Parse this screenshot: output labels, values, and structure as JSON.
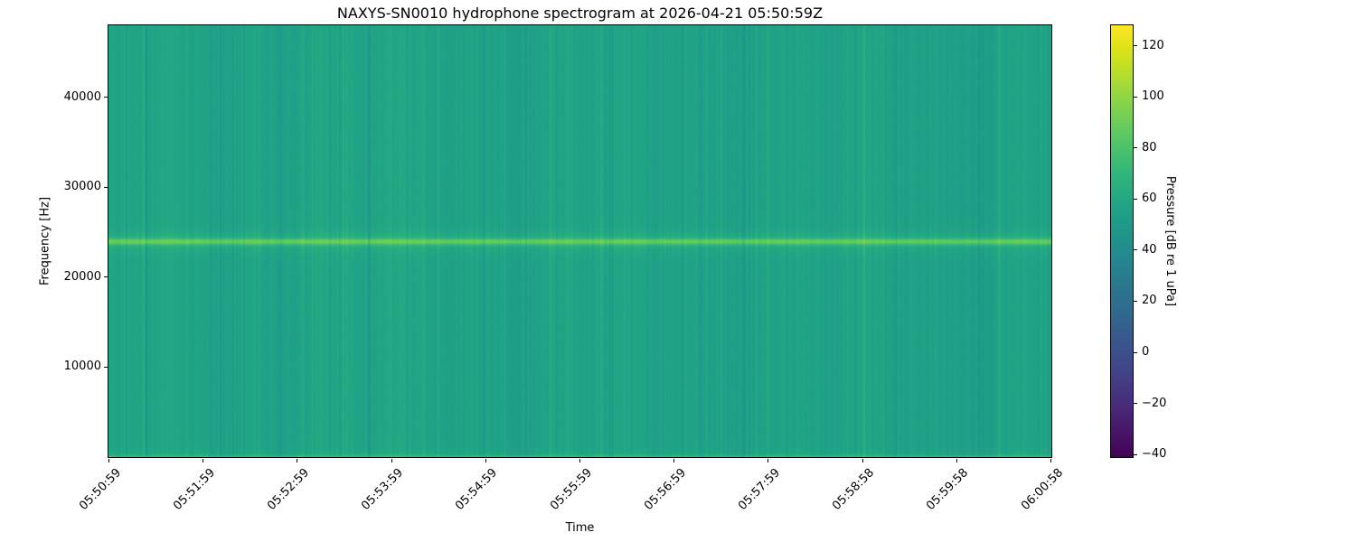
{
  "figure": {
    "title": "NAXYS-SN0010 hydrophone spectrogram at 2026-04-21 05:50:59Z",
    "background_color": "#ffffff"
  },
  "axes": {
    "xlabel": "Time",
    "ylabel": "Frequency [Hz]",
    "x_tick_labels": [
      "05:50:59",
      "05:51:59",
      "05:52:59",
      "05:53:59",
      "05:54:59",
      "05:55:59",
      "05:56:59",
      "05:57:59",
      "05:58:58",
      "05:59:58",
      "06:00:58"
    ],
    "y_tick_labels": [
      "10000",
      "20000",
      "30000",
      "40000"
    ],
    "y_tick_values": [
      10000,
      20000,
      30000,
      40000
    ],
    "y_range_hz": [
      0,
      48000
    ]
  },
  "colorbar": {
    "label": "Pressure [dB re 1 uPa]",
    "tick_labels": [
      "120",
      "100",
      "80",
      "60",
      "40",
      "20",
      "0",
      "−20",
      "−40"
    ],
    "tick_values": [
      120,
      100,
      80,
      60,
      40,
      20,
      0,
      -20,
      -40
    ],
    "vmin": -41,
    "vmax": 128,
    "colormap": "viridis",
    "colormap_stops": [
      {
        "t": 0.0,
        "c": "#440154"
      },
      {
        "t": 0.05,
        "c": "#471365"
      },
      {
        "t": 0.1,
        "c": "#482475"
      },
      {
        "t": 0.15,
        "c": "#463480"
      },
      {
        "t": 0.2,
        "c": "#414487"
      },
      {
        "t": 0.25,
        "c": "#3b528b"
      },
      {
        "t": 0.3,
        "c": "#355f8d"
      },
      {
        "t": 0.35,
        "c": "#2f6c8e"
      },
      {
        "t": 0.4,
        "c": "#2a788e"
      },
      {
        "t": 0.45,
        "c": "#25848e"
      },
      {
        "t": 0.5,
        "c": "#21918c"
      },
      {
        "t": 0.55,
        "c": "#1e9c89"
      },
      {
        "t": 0.6,
        "c": "#22a884"
      },
      {
        "t": 0.65,
        "c": "#2fb47c"
      },
      {
        "t": 0.7,
        "c": "#44bf70"
      },
      {
        "t": 0.75,
        "c": "#5ec962"
      },
      {
        "t": 0.8,
        "c": "#7ad151"
      },
      {
        "t": 0.85,
        "c": "#9bd93c"
      },
      {
        "t": 0.9,
        "c": "#bddf26"
      },
      {
        "t": 0.95,
        "c": "#dfe318"
      },
      {
        "t": 1.0,
        "c": "#fde725"
      }
    ]
  },
  "chart_data": {
    "type": "heatmap",
    "subtype": "spectrogram",
    "title": "NAXYS-SN0010 hydrophone spectrogram at 2026-04-21 05:50:59Z",
    "xlabel": "Time",
    "ylabel": "Frequency [Hz]",
    "value_label": "Pressure [dB re 1 uPa]",
    "x_start": "05:50:59",
    "x_end": "06:00:58",
    "x_tick_interval_s": 60,
    "x_ticks": [
      "05:50:59",
      "05:51:59",
      "05:52:59",
      "05:53:59",
      "05:54:59",
      "05:55:59",
      "05:56:59",
      "05:57:59",
      "05:58:58",
      "05:59:58",
      "06:00:58"
    ],
    "freq_range_hz": [
      0,
      48000
    ],
    "value_range_db": [
      -41,
      128
    ],
    "legend_position": "right-colorbar",
    "grid": false,
    "summary": "Broadband ambient noise around 55-60 dB across 0-48 kHz with dense vertical per-ping amplitude striping, a continuous bright tonal band near 24000 Hz (~85-90 dB) spanning the full duration, and slightly elevated energy (~70-75 dB) in the lowest frequency bins at the bottom edge.",
    "features": {
      "background_level_db": 57,
      "tonal_band": {
        "center_hz": 24000,
        "peak_above_background_db": 26,
        "core_sigma_hz": 250,
        "halo_above_background_db": 6,
        "halo_sigma_hz": 900
      },
      "low_freq_band": {
        "below_hz": 500,
        "boost_db": 16
      },
      "ping_striping": {
        "column_std_db": 3.5,
        "dark_stripe_prob": 0.05,
        "dark_stripe_extra_db": -9,
        "bright_stripe_prob": 0.045,
        "bright_stripe_extra_db": 6
      }
    },
    "noise_seed": 42
  }
}
